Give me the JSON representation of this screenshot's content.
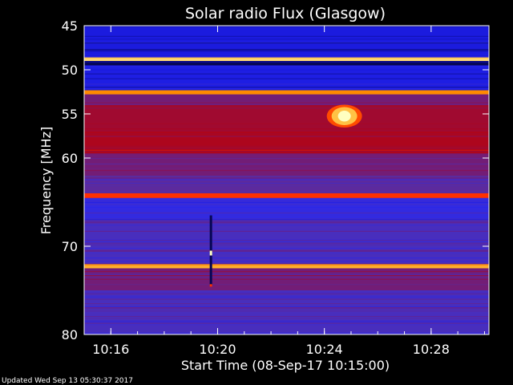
{
  "chart_data": {
    "type": "heatmap",
    "title": "Solar radio Flux (Glasgow)",
    "xlabel": "Start Time (08-Sep-17 10:15:00)",
    "ylabel": "Frequency [MHz]",
    "x_unit": "minutes",
    "x_range": [
      "10:15:00",
      "10:30:10"
    ],
    "y_range": [
      45,
      80
    ],
    "y_inverted": true,
    "x_ticks": [
      "10:16",
      "10:20",
      "10:24",
      "10:28"
    ],
    "y_ticks": [
      45,
      50,
      55,
      60,
      70,
      80
    ],
    "colormap": [
      "#000000",
      "#1010d0",
      "#2828f0",
      "#5030b0",
      "#8a1050",
      "#c00000",
      "#ff3000",
      "#ffa000",
      "#ffffc0"
    ],
    "bands": [
      {
        "f_start": 45.0,
        "f_end": 48.6,
        "level": 0.18
      },
      {
        "f_start": 48.6,
        "f_end": 49.0,
        "level": 0.95
      },
      {
        "f_start": 49.0,
        "f_end": 49.5,
        "level": 0.08
      },
      {
        "f_start": 49.5,
        "f_end": 52.3,
        "level": 0.2
      },
      {
        "f_start": 52.3,
        "f_end": 52.8,
        "level": 0.85
      },
      {
        "f_start": 52.8,
        "f_end": 54.0,
        "level": 0.45
      },
      {
        "f_start": 54.0,
        "f_end": 57.0,
        "level": 0.55
      },
      {
        "f_start": 57.0,
        "f_end": 59.5,
        "level": 0.58
      },
      {
        "f_start": 59.5,
        "f_end": 62.0,
        "level": 0.45
      },
      {
        "f_start": 62.0,
        "f_end": 64.0,
        "level": 0.4
      },
      {
        "f_start": 64.0,
        "f_end": 64.5,
        "level": 0.75
      },
      {
        "f_start": 64.5,
        "f_end": 67.0,
        "level": 0.28
      },
      {
        "f_start": 67.0,
        "f_end": 72.0,
        "level": 0.35
      },
      {
        "f_start": 72.0,
        "f_end": 72.5,
        "level": 0.9
      },
      {
        "f_start": 72.5,
        "f_end": 75.0,
        "level": 0.45
      },
      {
        "f_start": 75.0,
        "f_end": 80.0,
        "level": 0.35
      }
    ],
    "features": [
      {
        "label": "burst",
        "time": "10:24:45",
        "f_start": 54.5,
        "f_end": 56.0,
        "level": 1.0
      },
      {
        "label": "spike",
        "time": "10:19:45",
        "f_start": 66.5,
        "f_end": 74.5,
        "level": 0.05
      }
    ]
  },
  "footer": {
    "updated": "Updated Wed Sep 13 05:30:37 2017"
  }
}
